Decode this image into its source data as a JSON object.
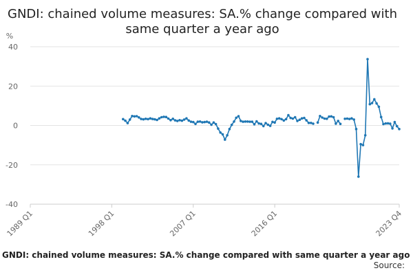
{
  "chart_data": {
    "type": "line",
    "title": "GNDI: chained volume measures: SA.% change compared with same quarter a year ago",
    "ylabel": "%",
    "ylim": [
      -40,
      40
    ],
    "yticks": [
      "40",
      "20",
      "0",
      "-20",
      "-40"
    ],
    "xticks": [
      "1989 Q1",
      "1998 Q1",
      "2007 Q1",
      "2016 Q1",
      "2023 Q4"
    ],
    "grid": true,
    "color": "#1f77b4",
    "series": [
      {
        "segments": [
          [
            [
              1999.25,
              3.2
            ],
            [
              1999.5,
              2.4
            ],
            [
              1999.75,
              1.2
            ],
            [
              2000,
              3.0
            ],
            [
              2000.25,
              4.8
            ],
            [
              2000.5,
              4.6
            ],
            [
              2000.75,
              4.7
            ],
            [
              2001,
              4.1
            ],
            [
              2001.25,
              3.3
            ],
            [
              2001.5,
              3.1
            ],
            [
              2001.75,
              3.4
            ],
            [
              2002,
              3.2
            ],
            [
              2002.25,
              3.6
            ],
            [
              2002.5,
              3.3
            ],
            [
              2002.75,
              3.1
            ],
            [
              2003,
              2.8
            ],
            [
              2003.25,
              3.6
            ],
            [
              2003.5,
              4.2
            ],
            [
              2003.75,
              4.4
            ],
            [
              2004,
              4.3
            ],
            [
              2004.25,
              3.5
            ],
            [
              2004.5,
              2.7
            ],
            [
              2004.75,
              3.4
            ],
            [
              2005,
              2.6
            ],
            [
              2005.25,
              2.3
            ],
            [
              2005.5,
              2.7
            ],
            [
              2005.75,
              2.4
            ],
            [
              2006,
              3.0
            ],
            [
              2006.25,
              3.6
            ],
            [
              2006.5,
              2.5
            ],
            [
              2006.75,
              1.9
            ],
            [
              2007,
              1.7
            ],
            [
              2007.25,
              0.8
            ],
            [
              2007.5,
              1.9
            ],
            [
              2007.75,
              2.0
            ],
            [
              2008,
              1.6
            ],
            [
              2008.25,
              1.7
            ],
            [
              2008.5,
              1.9
            ],
            [
              2008.75,
              1.5
            ],
            [
              2009,
              0.4
            ],
            [
              2009.25,
              1.5
            ],
            [
              2009.5,
              0.7
            ],
            [
              2009.75,
              -1.6
            ],
            [
              2010,
              -3.6
            ],
            [
              2010.25,
              -4.5
            ],
            [
              2010.5,
              -7.2
            ],
            [
              2010.75,
              -5.0
            ],
            [
              2011,
              -1.8
            ],
            [
              2011.25,
              0.3
            ],
            [
              2011.5,
              2.0
            ],
            [
              2011.75,
              3.9
            ],
            [
              2012,
              4.7
            ],
            [
              2012.25,
              2.3
            ],
            [
              2012.5,
              1.9
            ],
            [
              2012.75,
              2.0
            ],
            [
              2013,
              2.0
            ],
            [
              2013.25,
              1.9
            ],
            [
              2013.5,
              1.9
            ],
            [
              2013.75,
              0.6
            ],
            [
              2014,
              2.1
            ],
            [
              2014.25,
              1.0
            ],
            [
              2014.5,
              0.8
            ],
            [
              2014.75,
              -0.3
            ],
            [
              2015,
              1.2
            ],
            [
              2015.25,
              0.4
            ],
            [
              2015.5,
              -0.2
            ],
            [
              2015.75,
              1.8
            ],
            [
              2016,
              1.5
            ],
            [
              2016.25,
              3.4
            ],
            [
              2016.5,
              3.6
            ],
            [
              2016.75,
              3.2
            ],
            [
              2017,
              2.5
            ],
            [
              2017.25,
              3.2
            ],
            [
              2017.5,
              5.2
            ],
            [
              2017.75,
              3.8
            ],
            [
              2018,
              3.5
            ],
            [
              2018.25,
              4.2
            ],
            [
              2018.5,
              2.3
            ],
            [
              2018.75,
              2.9
            ],
            [
              2019,
              3.6
            ],
            [
              2019.25,
              3.8
            ],
            [
              2019.5,
              2.6
            ],
            [
              2019.75,
              1.3
            ],
            [
              2020,
              1.3
            ],
            [
              2020.25,
              0.9
            ]
          ],
          [
            [
              2020.75,
              1.5
            ],
            [
              2021,
              4.8
            ],
            [
              2021.25,
              4.0
            ],
            [
              2021.5,
              3.5
            ],
            [
              2021.75,
              3.4
            ],
            [
              2022,
              4.5
            ],
            [
              2022.25,
              4.6
            ],
            [
              2022.5,
              4.2
            ],
            [
              2022.75,
              0.9
            ],
            [
              2023,
              2.3
            ],
            [
              2023.25,
              0.8
            ]
          ],
          [
            [
              2023.75,
              3.4
            ],
            [
              2024,
              3.5
            ],
            [
              2024.25,
              3.3
            ],
            [
              2024.5,
              3.6
            ],
            [
              2024.75,
              3.0
            ],
            [
              2025,
              -1.8
            ],
            [
              2025.25,
              -26.0
            ],
            [
              2025.5,
              -9.5
            ],
            [
              2025.75,
              -10.0
            ],
            [
              2026,
              -5.0
            ],
            [
              2026.25,
              33.7
            ],
            [
              2026.5,
              10.8
            ],
            [
              2026.75,
              11.4
            ],
            [
              2027,
              13.3
            ],
            [
              2027.25,
              11.2
            ],
            [
              2027.5,
              9.5
            ],
            [
              2027.75,
              4.3
            ],
            [
              2028,
              0.7
            ],
            [
              2028.25,
              1.0
            ],
            [
              2028.5,
              1.1
            ],
            [
              2028.75,
              0.9
            ],
            [
              2029,
              -1.5
            ],
            [
              2029.25,
              1.7
            ],
            [
              2029.5,
              -0.4
            ],
            [
              2029.75,
              -1.8
            ]
          ]
        ]
      }
    ]
  },
  "footer": {
    "title": "GNDI: chained volume measures: SA.% change compared with same quarter a year ago",
    "source": "Source:"
  }
}
